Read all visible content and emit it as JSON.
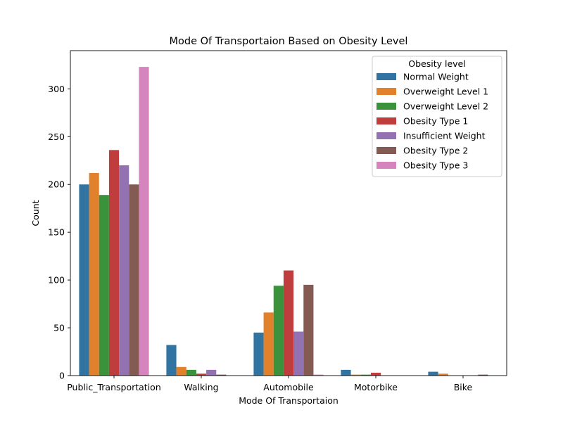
{
  "chart_data": {
    "type": "bar",
    "title": "Mode Of Transportaion Based on Obesity Level",
    "xlabel": "Mode Of Transportaion",
    "ylabel": "Count",
    "ylim": [
      0,
      340
    ],
    "yticks": [
      0,
      50,
      100,
      150,
      200,
      250,
      300
    ],
    "grid": false,
    "legend": {
      "title": "Obesity level",
      "placement": "top-right"
    },
    "categories": [
      "Public_Transportation",
      "Walking",
      "Automobile",
      "Motorbike",
      "Bike"
    ],
    "series": [
      {
        "name": "Normal Weight",
        "color": "#3274a1",
        "values": [
          200,
          32,
          45,
          6,
          4
        ]
      },
      {
        "name": "Overweight Level 1",
        "color": "#e1812c",
        "values": [
          212,
          9,
          66,
          1,
          2
        ]
      },
      {
        "name": "Overweight Level 2",
        "color": "#3a923a",
        "values": [
          189,
          6,
          94,
          1,
          0
        ]
      },
      {
        "name": "Obesity Type 1",
        "color": "#c03d3e",
        "values": [
          236,
          2,
          110,
          3,
          0
        ]
      },
      {
        "name": "Insufficient Weight",
        "color": "#9372b2",
        "values": [
          220,
          6,
          46,
          0,
          0
        ]
      },
      {
        "name": "Obesity Type 2",
        "color": "#845b53",
        "values": [
          200,
          1,
          95,
          0,
          1
        ]
      },
      {
        "name": "Obesity Type 3",
        "color": "#d684bd",
        "values": [
          323,
          0,
          1,
          0,
          0
        ]
      }
    ]
  }
}
